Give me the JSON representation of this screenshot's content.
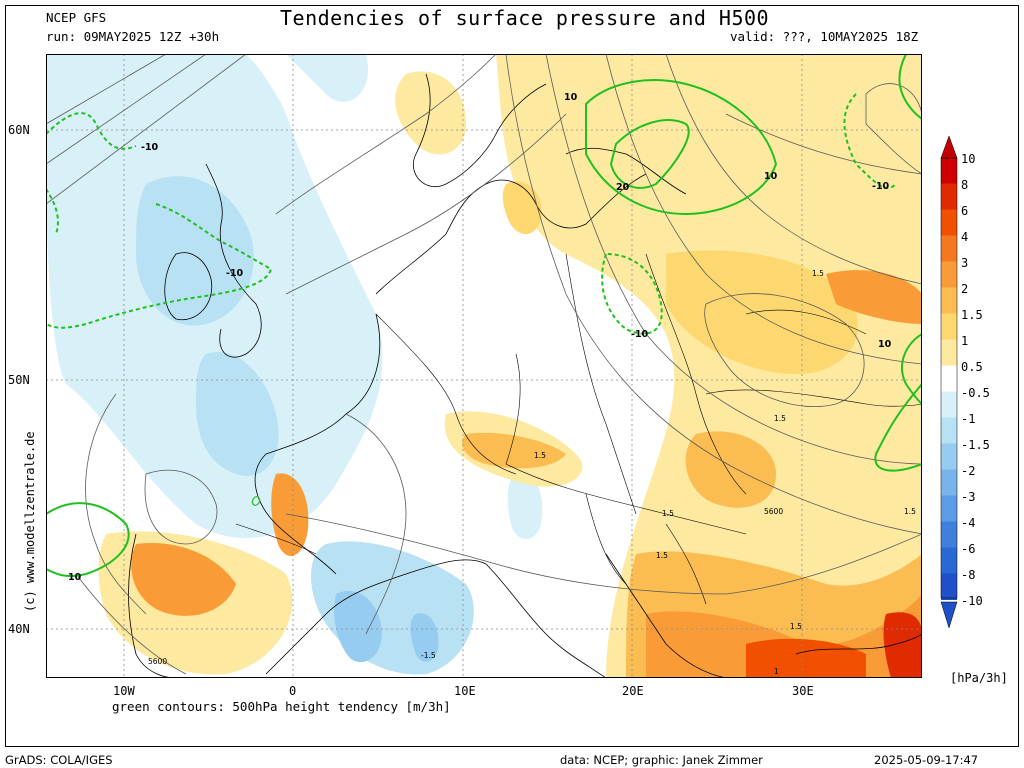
{
  "header": {
    "model": "NCEP GFS",
    "run": "run: 09MAY2025 12Z +30h",
    "title": "Tendencies of surface pressure and H500",
    "valid": "valid: ???, 10MAY2025 18Z"
  },
  "map": {
    "lat_labels": [
      "60N",
      "50N",
      "40N"
    ],
    "lon_labels": [
      "10W",
      "0",
      "10E",
      "20E",
      "30E"
    ],
    "green_contour_labels": [
      "-10",
      "-10",
      "-10",
      "-10",
      "10",
      "10",
      "10",
      "10",
      "20"
    ],
    "black_contour_labels": [
      "1.5",
      "1.5",
      "1.5",
      "1.5",
      "1.5",
      "1.5",
      "1.5",
      "-1.5",
      "1",
      "5600",
      "5600"
    ],
    "caption": "green contours: 500hPa height tendency [m/3h]",
    "watermark": "(c) www.modellzentrale.de"
  },
  "colorbar": {
    "labels": [
      "10",
      "8",
      "6",
      "4",
      "3",
      "2",
      "1.5",
      "1",
      "0.5",
      "-0.5",
      "-1",
      "-1.5",
      "-2",
      "-3",
      "-4",
      "-6",
      "-8",
      "-10"
    ],
    "colors": [
      "#d00000",
      "#e02a00",
      "#f05000",
      "#f47820",
      "#f99c38",
      "#fbbd52",
      "#fdd870",
      "#fee9a0",
      "#ffffff",
      "#d8f0f8",
      "#b8e2f4",
      "#96ccef",
      "#78b4ea",
      "#5c9ce4",
      "#4080dc",
      "#2a68d4",
      "#1e50c8"
    ],
    "unit": "[hPa/3h]"
  },
  "footer": {
    "left": "GrADS: COLA/IGES",
    "credits": "data: NCEP; graphic: Janek Zimmer",
    "timestamp": "2025-05-09-17:47"
  }
}
